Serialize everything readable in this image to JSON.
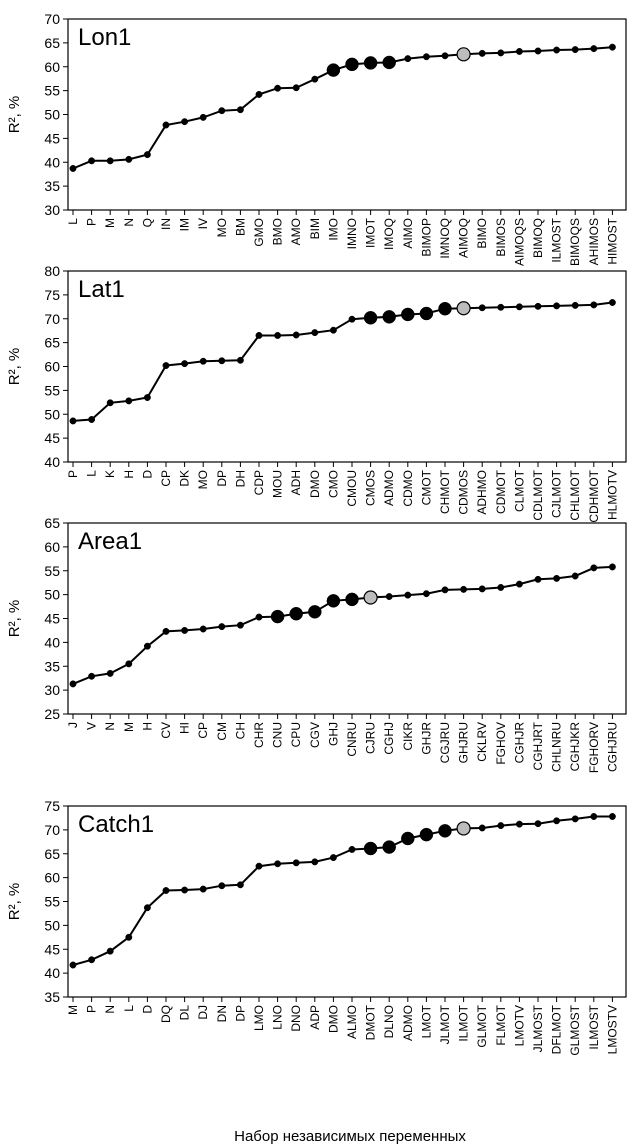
{
  "chart_data": [
    {
      "type": "line",
      "title": "Lon1",
      "ylabel": "R², %",
      "ylim": [
        30,
        70
      ],
      "ystep": 5,
      "grid": false,
      "highlight_black": [
        14,
        15,
        16,
        17
      ],
      "highlight_gray": 21,
      "categories": [
        "L",
        "P",
        "M",
        "N",
        "Q",
        "IN",
        "IM",
        "IV",
        "MO",
        "BM",
        "GMO",
        "BMO",
        "AMO",
        "BIM",
        "IMO",
        "IMNO",
        "IMOT",
        "IMOQ",
        "AIMO",
        "BIMOP",
        "IMNOQ",
        "AIMOQ",
        "BIMO",
        "BIMOS",
        "AIMOQS",
        "BIMOQ",
        "ILMOST",
        "BIMOQS",
        "AHIMOS",
        "HIMOST"
      ],
      "values": [
        38.7,
        40.3,
        40.3,
        40.6,
        41.6,
        47.8,
        48.5,
        49.4,
        50.8,
        51.0,
        54.2,
        55.5,
        55.6,
        57.4,
        59.3,
        60.5,
        60.8,
        60.9,
        61.7,
        62.1,
        62.3,
        62.6,
        62.8,
        62.9,
        63.2,
        63.3,
        63.5,
        63.6,
        63.8,
        64.1
      ]
    },
    {
      "type": "line",
      "title": "Lat1",
      "ylabel": "R², %",
      "ylim": [
        40,
        80
      ],
      "ystep": 5,
      "grid": false,
      "highlight_black": [
        16,
        17,
        18,
        19,
        20
      ],
      "highlight_gray": 21,
      "categories": [
        "P",
        "L",
        "K",
        "H",
        "D",
        "CP",
        "DK",
        "MO",
        "DP",
        "DH",
        "CDP",
        "MOU",
        "ADH",
        "DMO",
        "CMO",
        "CMOU",
        "CMOS",
        "ADMO",
        "CDMO",
        "CMOT",
        "CHMOT",
        "CDMOS",
        "ADHMO",
        "CDMOT",
        "CLMOT",
        "CDLMOT",
        "CJLMOT",
        "CHLMOT",
        "CDHMOT",
        "HLMOTV"
      ],
      "values": [
        48.6,
        48.9,
        52.4,
        52.8,
        53.5,
        60.2,
        60.6,
        61.1,
        61.2,
        61.3,
        66.5,
        66.5,
        66.6,
        67.1,
        67.6,
        69.9,
        70.2,
        70.4,
        70.9,
        71.1,
        72.1,
        72.2,
        72.3,
        72.4,
        72.5,
        72.6,
        72.7,
        72.8,
        72.9,
        73.4
      ]
    },
    {
      "type": "line",
      "title": "Area1",
      "ylabel": "R², %",
      "ylim": [
        25,
        65
      ],
      "ystep": 5,
      "grid": false,
      "highlight_black": [
        11,
        12,
        13,
        14,
        15
      ],
      "highlight_gray": 16,
      "categories": [
        "J",
        "V",
        "N",
        "M",
        "H",
        "CV",
        "HI",
        "CP",
        "CM",
        "CH",
        "CHR",
        "CNU",
        "CPU",
        "CGV",
        "GHJ",
        "CNRU",
        "CJRU",
        "CGHJ",
        "CIKR",
        "GHJR",
        "CGJRU",
        "GHJRU",
        "CKLRV",
        "FGHOV",
        "CGHJR",
        "CGHJRT",
        "CHLNRU",
        "CGHJKR",
        "FGHORV",
        "CGHJRU"
      ],
      "values": [
        31.3,
        32.9,
        33.5,
        35.5,
        39.2,
        42.3,
        42.5,
        42.8,
        43.3,
        43.6,
        45.3,
        45.4,
        46.0,
        46.4,
        48.7,
        49.0,
        49.4,
        49.6,
        49.9,
        50.2,
        51.0,
        51.1,
        51.2,
        51.5,
        52.2,
        53.2,
        53.4,
        53.9,
        55.6,
        55.8
      ]
    },
    {
      "type": "line",
      "title": "Catch1",
      "ylabel": "R², %",
      "ylim": [
        35,
        75
      ],
      "ystep": 5,
      "grid": false,
      "highlight_black": [
        16,
        17,
        18,
        19,
        20
      ],
      "highlight_gray": 21,
      "xlabel": "Набор независимых переменных",
      "categories": [
        "M",
        "P",
        "N",
        "L",
        "D",
        "DQ",
        "DL",
        "DJ",
        "DN",
        "DP",
        "LMO",
        "LNO",
        "DNO",
        "ADP",
        "DMO",
        "ALMO",
        "DMOT",
        "DLNO",
        "ADMO",
        "LMOT",
        "JLMOT",
        "ILMOT",
        "GLMOT",
        "FLMOT",
        "LMOTV",
        "JLMOST",
        "DFLMOT",
        "GLMOST",
        "ILMOST",
        "LMOSTV"
      ],
      "values": [
        41.7,
        42.8,
        44.6,
        47.5,
        53.7,
        57.3,
        57.4,
        57.6,
        58.3,
        58.5,
        62.4,
        62.9,
        63.1,
        63.3,
        64.2,
        65.9,
        66.1,
        66.4,
        68.2,
        69.0,
        69.8,
        70.3,
        70.4,
        70.9,
        71.2,
        71.3,
        71.9,
        72.3,
        72.8,
        72.8
      ]
    }
  ]
}
